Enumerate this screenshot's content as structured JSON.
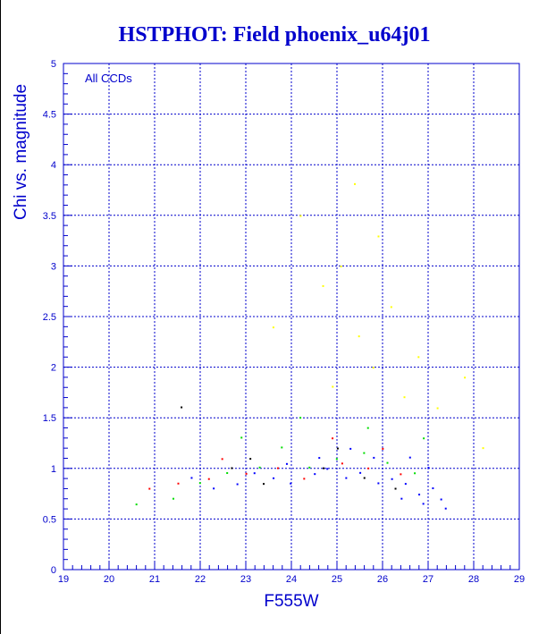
{
  "chart_data": {
    "type": "scatter",
    "title": "HSTPHOT: Field phoenix_u64j01",
    "xlabel": "F555W",
    "ylabel": "Chi vs. magnitude",
    "annotation": "All CCDs",
    "xlim": [
      19,
      29
    ],
    "ylim": [
      0,
      5
    ],
    "x_ticks": [
      19,
      20,
      21,
      22,
      23,
      24,
      25,
      26,
      27,
      28,
      29
    ],
    "y_ticks": [
      0,
      0.5,
      1,
      1.5,
      2,
      2.5,
      3,
      3.5,
      4,
      4.5,
      5
    ],
    "grid": true,
    "colors": {
      "axis": "#0000cc",
      "grid": "#0000cc",
      "series": [
        "#0000ff",
        "#00dd00",
        "#ff0000",
        "#ffff00",
        "#000000"
      ]
    },
    "series": [
      {
        "color": "#0000ff",
        "points": [
          [
            27.1,
            0.8
          ],
          [
            26.8,
            0.75
          ],
          [
            26.5,
            0.85
          ],
          [
            27.3,
            0.7
          ],
          [
            26.2,
            0.9
          ],
          [
            25.9,
            0.85
          ],
          [
            25.5,
            0.95
          ],
          [
            25.2,
            0.9
          ],
          [
            24.8,
            1.0
          ],
          [
            24.5,
            0.95
          ],
          [
            24.0,
            0.85
          ],
          [
            23.6,
            0.9
          ],
          [
            23.2,
            0.95
          ],
          [
            22.8,
            0.85
          ],
          [
            22.3,
            0.8
          ],
          [
            21.8,
            0.9
          ],
          [
            27.4,
            0.6
          ],
          [
            26.9,
            0.65
          ],
          [
            26.4,
            0.7
          ],
          [
            25.8,
            1.1
          ],
          [
            25.3,
            1.2
          ],
          [
            24.6,
            1.1
          ],
          [
            23.9,
            1.05
          ],
          [
            27.0,
            1.0
          ],
          [
            26.6,
            1.1
          ]
        ]
      },
      {
        "color": "#00dd00",
        "points": [
          [
            26.7,
            0.95
          ],
          [
            26.1,
            1.05
          ],
          [
            25.6,
            1.15
          ],
          [
            25.0,
            1.1
          ],
          [
            24.4,
            1.0
          ],
          [
            23.8,
            1.2
          ],
          [
            23.3,
            1.0
          ],
          [
            22.6,
            0.95
          ],
          [
            22.0,
            0.85
          ],
          [
            21.4,
            0.7
          ],
          [
            20.6,
            0.65
          ],
          [
            26.9,
            1.3
          ],
          [
            25.7,
            1.4
          ],
          [
            24.2,
            1.5
          ],
          [
            22.9,
            1.3
          ]
        ]
      },
      {
        "color": "#ff0000",
        "points": [
          [
            26.4,
            0.95
          ],
          [
            25.7,
            1.0
          ],
          [
            25.1,
            1.05
          ],
          [
            24.3,
            0.9
          ],
          [
            23.7,
            1.0
          ],
          [
            23.0,
            0.95
          ],
          [
            22.2,
            0.9
          ],
          [
            21.5,
            0.85
          ],
          [
            20.9,
            0.8
          ],
          [
            26.0,
            1.2
          ],
          [
            24.9,
            1.3
          ],
          [
            22.5,
            1.1
          ]
        ]
      },
      {
        "color": "#ffff00",
        "points": [
          [
            25.5,
            2.3
          ],
          [
            25.8,
            2.0
          ],
          [
            26.2,
            2.6
          ],
          [
            25.1,
            3.0
          ],
          [
            24.7,
            2.8
          ],
          [
            26.5,
            1.7
          ],
          [
            27.2,
            1.6
          ],
          [
            25.9,
            3.3
          ],
          [
            24.2,
            3.5
          ],
          [
            25.4,
            3.8
          ],
          [
            26.8,
            2.1
          ],
          [
            27.8,
            1.9
          ],
          [
            28.2,
            1.2
          ],
          [
            23.6,
            2.4
          ],
          [
            24.9,
            1.8
          ]
        ]
      },
      {
        "color": "#000000",
        "points": [
          [
            25.6,
            0.9
          ],
          [
            24.7,
            1.0
          ],
          [
            23.4,
            0.85
          ],
          [
            22.7,
            1.0
          ],
          [
            21.6,
            1.6
          ],
          [
            26.3,
            0.8
          ],
          [
            25.0,
            1.2
          ],
          [
            23.1,
            1.1
          ]
        ]
      }
    ]
  }
}
